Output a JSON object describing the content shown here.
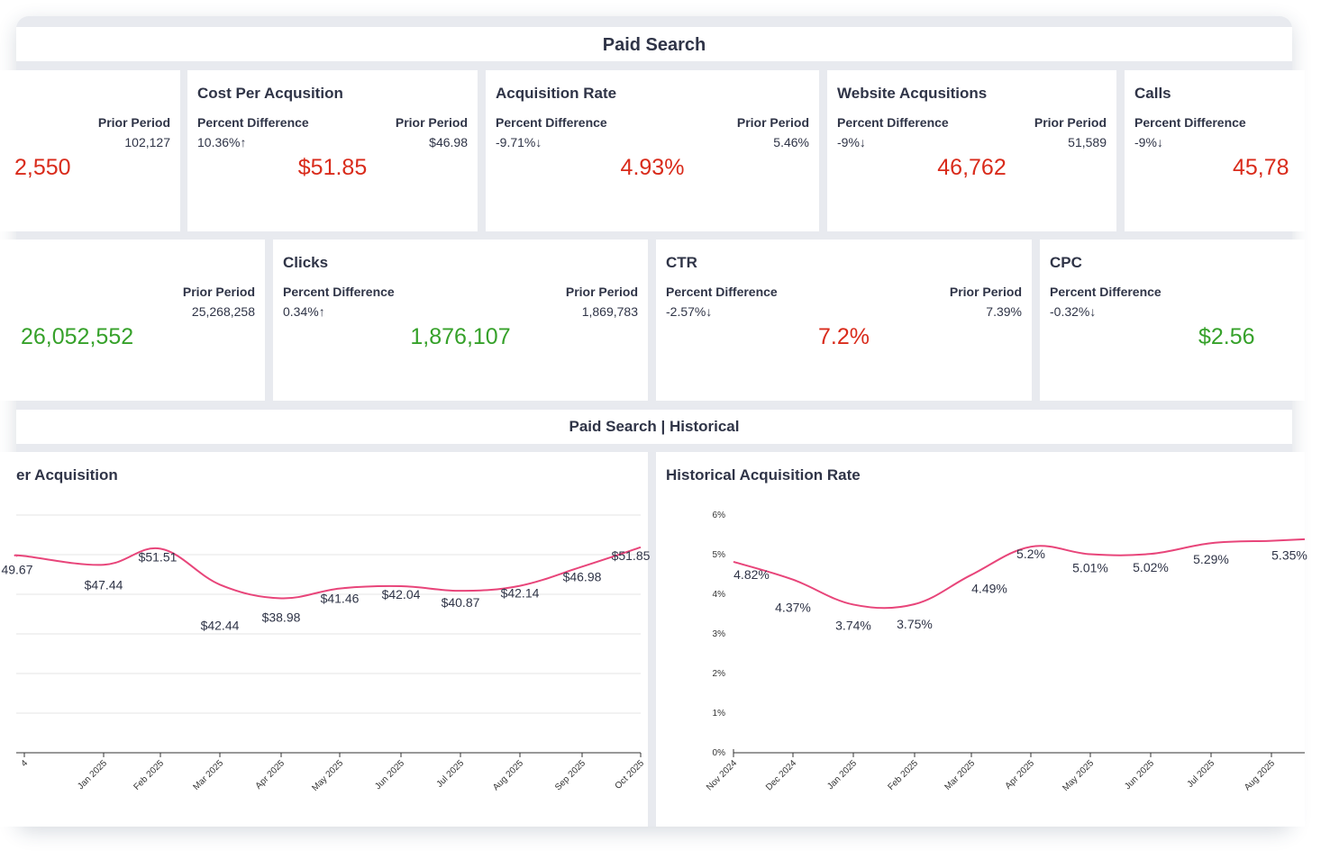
{
  "section_title": "Paid Search",
  "historical_title": "Paid Search | Historical",
  "colors": {
    "negative": "#d92b1b",
    "positive": "#36a12a",
    "line": "#e8457a"
  },
  "row1": [
    {
      "name": "",
      "pd_label": "",
      "pd_value": "",
      "pp_label": "Prior Period",
      "pp_value": "102,127",
      "value": "2,550",
      "tone": "negative"
    },
    {
      "name": "Cost Per Acqusition",
      "pd_label": "Percent Difference",
      "pd_value": "10.36%↑",
      "pp_label": "Prior Period",
      "pp_value": "$46.98",
      "value": "$51.85",
      "tone": "negative"
    },
    {
      "name": "Acquisition Rate",
      "pd_label": "Percent Difference",
      "pd_value": "-9.71%↓",
      "pp_label": "Prior Period",
      "pp_value": "5.46%",
      "value": "4.93%",
      "tone": "negative"
    },
    {
      "name": "Website Acqusitions",
      "pd_label": "Percent Difference",
      "pd_value": "-9%↓",
      "pp_label": "Prior Period",
      "pp_value": "51,589",
      "value": "46,762",
      "tone": "negative"
    },
    {
      "name": "Calls",
      "pd_label": "Percent Difference",
      "pd_value": "-9%↓",
      "pp_label": "",
      "pp_value": "",
      "value": "45,78",
      "tone": "negative"
    }
  ],
  "row2": [
    {
      "name": "",
      "pd_label": "",
      "pd_value": "",
      "pp_label": "Prior Period",
      "pp_value": "25,268,258",
      "value": "26,052,552",
      "tone": "positive"
    },
    {
      "name": "Clicks",
      "pd_label": "Percent Difference",
      "pd_value": "0.34%↑",
      "pp_label": "Prior Period",
      "pp_value": "1,869,783",
      "value": "1,876,107",
      "tone": "positive"
    },
    {
      "name": "CTR",
      "pd_label": "Percent Difference",
      "pd_value": "-2.57%↓",
      "pp_label": "Prior Period",
      "pp_value": "7.39%",
      "value": "7.2%",
      "tone": "negative"
    },
    {
      "name": "CPC",
      "pd_label": "Percent Difference",
      "pd_value": "-0.32%↓",
      "pp_label": "",
      "pp_value": "",
      "value": "$2.56",
      "tone": "positive"
    }
  ],
  "chart_data": [
    {
      "type": "line",
      "title": "er Acquisition",
      "categories": [
        "4",
        "Jan 2025",
        "Feb 2025",
        "Mar 2025",
        "Apr 2025",
        "May 2025",
        "Jun 2025",
        "Jul 2025",
        "Aug 2025",
        "Sep 2025",
        "Oct 2025"
      ],
      "values": [
        49.67,
        47.44,
        51.51,
        42.44,
        38.98,
        41.46,
        42.04,
        40.87,
        42.14,
        46.98,
        51.85
      ],
      "labels": [
        "49.67",
        "$47.44",
        "$51.51",
        "$42.44",
        "$38.98",
        "$41.46",
        "$42.04",
        "$40.87",
        "$42.14",
        "$46.98",
        "$51.85"
      ],
      "ylim": [
        0,
        60
      ],
      "grid": true,
      "show_y_ticks": false
    },
    {
      "type": "line",
      "title": "Historical Acquisition Rate",
      "categories": [
        "Nov 2024",
        "Dec 2024",
        "Jan 2025",
        "Feb 2025",
        "Mar 2025",
        "Apr 2025",
        "May 2025",
        "Jun 2025",
        "Jul 2025",
        "Aug 2025"
      ],
      "values": [
        4.82,
        4.37,
        3.74,
        3.75,
        4.49,
        5.2,
        5.01,
        5.02,
        5.29,
        5.35
      ],
      "labels": [
        "4.82%",
        "4.37%",
        "3.74%",
        "3.75%",
        "4.49%",
        "5.2%",
        "5.01%",
        "5.02%",
        "5.29%",
        "5.35%"
      ],
      "ylim": [
        0,
        6
      ],
      "y_ticks": [
        "0%",
        "1%",
        "2%",
        "3%",
        "4%",
        "5%",
        "6%"
      ],
      "grid": false,
      "show_y_ticks": true
    }
  ]
}
